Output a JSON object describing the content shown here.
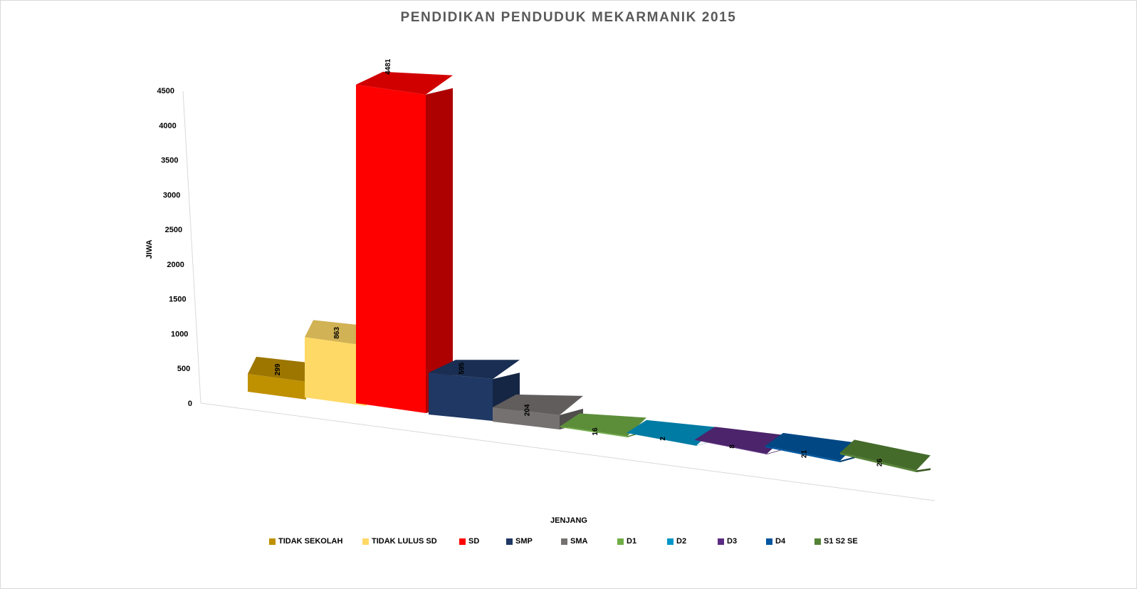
{
  "chart_data": {
    "type": "bar",
    "title": "PENDIDIKAN PENDUDUK MEKARMANIK 2015",
    "xlabel": "JENJANG",
    "ylabel": "JIWA",
    "ylim": [
      0,
      4500
    ],
    "yticks": [
      "0",
      "500",
      "1000",
      "1500",
      "2000",
      "2500",
      "3000",
      "3500",
      "4000",
      "4500"
    ],
    "three_d": true,
    "grid": false,
    "legend_position": "bottom",
    "series": [
      {
        "name": "TIDAK SEKOLAH",
        "value": 299,
        "color": "#BF9000"
      },
      {
        "name": "TIDAK LULUS SD",
        "value": 863,
        "color": "#FFD966"
      },
      {
        "name": "SD",
        "value": 4481,
        "color": "#FF0000"
      },
      {
        "name": "SMP",
        "value": 595,
        "color": "#1F3864"
      },
      {
        "name": "SMA",
        "value": 204,
        "color": "#767171"
      },
      {
        "name": "D1",
        "value": 16,
        "color": "#70AD47"
      },
      {
        "name": "D2",
        "value": 2,
        "color": "#0096C7"
      },
      {
        "name": "D3",
        "value": 8,
        "color": "#5B2C83"
      },
      {
        "name": "D4",
        "value": 21,
        "color": "#0056A0"
      },
      {
        "name": "S1 S2 SE",
        "value": 26,
        "color": "#548235"
      }
    ]
  }
}
